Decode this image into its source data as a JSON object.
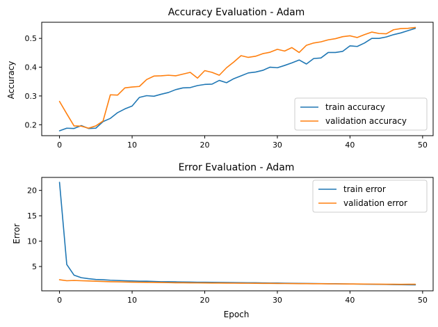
{
  "chart_data": [
    {
      "type": "line",
      "title": "Accuracy Evaluation - Adam",
      "xlabel": "",
      "ylabel": "Accuracy",
      "xlim": [
        -2.45,
        51.45
      ],
      "ylim": [
        0.162,
        0.556
      ],
      "xticks": [
        0,
        10,
        20,
        30,
        40,
        50
      ],
      "yticks": [
        0.2,
        0.3,
        0.4,
        0.5
      ],
      "ytick_labels": [
        "0.2",
        "0.3",
        "0.4",
        "0.5"
      ],
      "legend_position": "lower right",
      "x": [
        0,
        1,
        2,
        3,
        4,
        5,
        6,
        7,
        8,
        9,
        10,
        11,
        12,
        13,
        14,
        15,
        16,
        17,
        18,
        19,
        20,
        21,
        22,
        23,
        24,
        25,
        26,
        27,
        28,
        29,
        30,
        31,
        32,
        33,
        34,
        35,
        36,
        37,
        38,
        39,
        40,
        41,
        42,
        43,
        44,
        45,
        46,
        47,
        48,
        49
      ],
      "series": [
        {
          "name": "train accuracy",
          "color": "#1f77b4",
          "values": [
            0.179,
            0.188,
            0.187,
            0.197,
            0.187,
            0.188,
            0.211,
            0.222,
            0.242,
            0.255,
            0.265,
            0.295,
            0.301,
            0.299,
            0.306,
            0.312,
            0.322,
            0.328,
            0.329,
            0.336,
            0.34,
            0.341,
            0.354,
            0.346,
            0.36,
            0.37,
            0.38,
            0.383,
            0.389,
            0.4,
            0.398,
            0.406,
            0.415,
            0.425,
            0.411,
            0.43,
            0.432,
            0.451,
            0.451,
            0.455,
            0.474,
            0.472,
            0.484,
            0.5,
            0.5,
            0.505,
            0.513,
            0.519,
            0.527,
            0.535
          ]
        },
        {
          "name": "validation accuracy",
          "color": "#ff7f0e",
          "values": [
            0.281,
            0.238,
            0.196,
            0.195,
            0.188,
            0.196,
            0.213,
            0.304,
            0.303,
            0.328,
            0.331,
            0.333,
            0.357,
            0.369,
            0.37,
            0.372,
            0.37,
            0.376,
            0.382,
            0.362,
            0.388,
            0.382,
            0.372,
            0.398,
            0.418,
            0.44,
            0.434,
            0.438,
            0.447,
            0.452,
            0.462,
            0.456,
            0.468,
            0.451,
            0.476,
            0.484,
            0.488,
            0.495,
            0.499,
            0.506,
            0.509,
            0.503,
            0.513,
            0.522,
            0.517,
            0.516,
            0.53,
            0.534,
            0.535,
            0.538
          ]
        }
      ]
    },
    {
      "type": "line",
      "title": "Error Evaluation - Adam",
      "xlabel": "Epoch",
      "ylabel": "Error",
      "xlim": [
        -2.45,
        51.45
      ],
      "ylim": [
        0.21,
        22.56
      ],
      "xticks": [
        0,
        10,
        20,
        30,
        40,
        50
      ],
      "yticks": [
        5,
        10,
        15,
        20
      ],
      "ytick_labels": [
        "5",
        "10",
        "15",
        "20"
      ],
      "legend_position": "upper right",
      "x": [
        0,
        1,
        2,
        3,
        4,
        5,
        6,
        7,
        8,
        9,
        10,
        11,
        12,
        13,
        14,
        15,
        16,
        17,
        18,
        19,
        20,
        21,
        22,
        23,
        24,
        25,
        26,
        27,
        28,
        29,
        30,
        31,
        32,
        33,
        34,
        35,
        36,
        37,
        38,
        39,
        40,
        41,
        42,
        43,
        44,
        45,
        46,
        47,
        48,
        49
      ],
      "series": [
        {
          "name": "train error",
          "color": "#1f77b4",
          "values": [
            21.6,
            5.4,
            3.3,
            2.8,
            2.6,
            2.45,
            2.4,
            2.3,
            2.25,
            2.2,
            2.15,
            2.1,
            2.1,
            2.05,
            2.0,
            2.0,
            1.98,
            1.95,
            1.93,
            1.9,
            1.9,
            1.88,
            1.86,
            1.85,
            1.83,
            1.82,
            1.8,
            1.79,
            1.77,
            1.75,
            1.74,
            1.72,
            1.7,
            1.68,
            1.66,
            1.65,
            1.63,
            1.61,
            1.6,
            1.58,
            1.56,
            1.54,
            1.52,
            1.5,
            1.48,
            1.46,
            1.44,
            1.42,
            1.4,
            1.38
          ]
        },
        {
          "name": "validation error",
          "color": "#ff7f0e",
          "values": [
            2.4,
            2.2,
            2.25,
            2.2,
            2.15,
            2.1,
            2.05,
            2.0,
            1.98,
            1.95,
            1.92,
            1.9,
            1.88,
            1.86,
            1.84,
            1.82,
            1.8,
            1.79,
            1.78,
            1.77,
            1.76,
            1.75,
            1.74,
            1.73,
            1.72,
            1.71,
            1.7,
            1.69,
            1.68,
            1.67,
            1.66,
            1.65,
            1.64,
            1.63,
            1.62,
            1.61,
            1.6,
            1.59,
            1.58,
            1.57,
            1.56,
            1.55,
            1.54,
            1.53,
            1.52,
            1.51,
            1.5,
            1.49,
            1.5,
            1.5
          ]
        }
      ]
    }
  ]
}
